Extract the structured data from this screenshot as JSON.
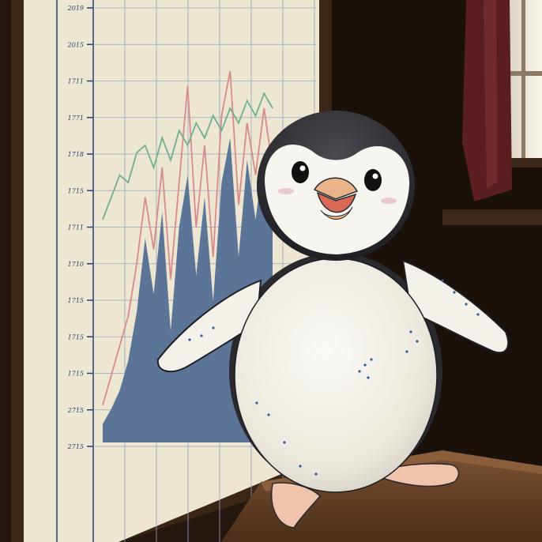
{
  "scene": {
    "subject": "penguin-plush",
    "backdrop": "stock-chart-poster",
    "colors": {
      "room_dark": "#1e140d",
      "wall_brown": "#3a2719",
      "curtain": "#5a1e22",
      "window_light": "#f2ece0",
      "poster_paper": "#ece6d2",
      "grid_line": "#9aa6bf",
      "axis_ink": "#2b3f6e",
      "area_fill": "#5c7596",
      "line_red": "#d98a8a",
      "line_green": "#6fb08f",
      "table_wood": "#6a4428",
      "penguin_black": "#2a2a2e",
      "penguin_white": "#f4f1ea",
      "beak_orange": "#e9b48a",
      "feet_peach": "#f0c4ac"
    }
  },
  "poster": {
    "tick_labels": [
      "2019",
      "2015",
      "1711",
      "1771",
      "1718",
      "1715",
      "1711",
      "1710",
      "1715",
      "1715",
      "1715",
      "2715",
      "2715"
    ]
  },
  "chart_data": {
    "type": "area",
    "x": [
      0,
      1,
      2,
      3,
      4,
      5,
      6,
      7,
      8,
      9,
      10,
      11,
      12,
      13,
      14,
      15,
      16,
      17,
      18,
      19,
      20
    ],
    "series": [
      {
        "values": [
          5,
          9,
          14,
          22,
          35,
          55,
          40,
          62,
          30,
          58,
          72,
          45,
          66,
          38,
          70,
          82,
          50,
          76,
          60,
          78,
          65
        ]
      },
      {
        "values": [
          10,
          18,
          26,
          34,
          48,
          66,
          52,
          74,
          44,
          70,
          96,
          58,
          80,
          50,
          88,
          100,
          64,
          86,
          72,
          90,
          74
        ]
      },
      {
        "values": [
          60,
          66,
          72,
          70,
          78,
          80,
          74,
          82,
          76,
          84,
          80,
          86,
          82,
          88,
          84,
          90,
          86,
          92,
          88,
          94,
          90
        ]
      }
    ],
    "ylim": [
      0,
      100
    ]
  }
}
